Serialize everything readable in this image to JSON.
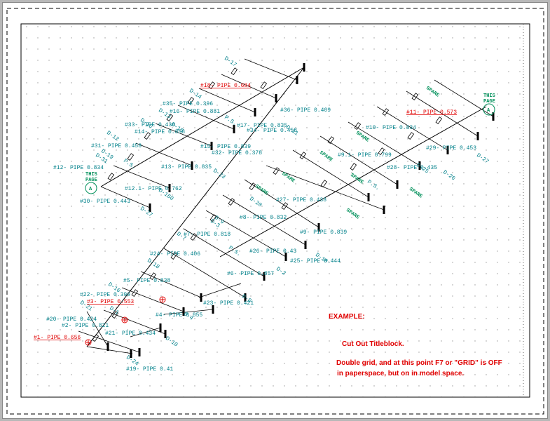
{
  "colors": {
    "pipe_line": "#000000",
    "label_teal": "#00808a",
    "label_red": "#e00000",
    "spare_green": "#00905a",
    "note_red": "#e00000",
    "grid_dot": "#9a9a9a"
  },
  "notes": {
    "heading": "EXAMPLE:",
    "line1": "Cut Out Titleblock.",
    "line2a": "Double grid, and at this point F7 or \"GRID\" is OFF",
    "line2b": "in paperspace, but on in model space."
  },
  "labels": [
    {
      "text": "#18- PIPE 0.684",
      "red": true
    },
    {
      "text": "#35- PIPE 0.396",
      "red": false
    },
    {
      "text": "#16- PIPE 0.881",
      "red": false
    },
    {
      "text": "#36- PIPE 0.409",
      "red": false
    },
    {
      "text": "#33- PIPE 0.438",
      "red": false
    },
    {
      "text": "#14- PIPE 0.858",
      "red": false
    },
    {
      "text": "#17- PIPE 0.835",
      "red": false
    },
    {
      "text": "#34- PIPE 0.458",
      "red": false
    },
    {
      "text": "#31- PIPE 0.458",
      "red": false
    },
    {
      "text": "#15- PIPE 0.839",
      "red": false
    },
    {
      "text": "#32- PIPE 0.378",
      "red": false
    },
    {
      "text": "#12- PIPE 0.834",
      "red": false
    },
    {
      "text": "#13- PIPE 0.835",
      "red": false
    },
    {
      "text": "#12.1- PIPE 0.762",
      "red": false
    },
    {
      "text": "#30- PIPE 0.443",
      "red": false
    },
    {
      "text": "#11- PIPE 0.573",
      "red": true
    },
    {
      "text": "#10- PIPE 0.834",
      "red": false
    },
    {
      "text": "#29- PIPE 0.453",
      "red": false
    },
    {
      "text": "#9.1- PIPE 0.799",
      "red": false
    },
    {
      "text": "#28- PIPE 0.435",
      "red": false
    },
    {
      "text": "#27- PIPE 0.438",
      "red": false
    },
    {
      "text": "#8- PIPE 0.832",
      "red": false
    },
    {
      "text": "#9- PIPE 0.839",
      "red": false
    },
    {
      "text": "#7- PIPE 0.818",
      "red": false
    },
    {
      "text": "#26- PIPE 0.43",
      "red": false
    },
    {
      "text": "#25- PIPE 0.444",
      "red": false
    },
    {
      "text": "#24- PIPE 0.406",
      "red": false
    },
    {
      "text": "#6- PIPE 0.857",
      "red": false
    },
    {
      "text": "#5- PIPE 0.838",
      "red": false
    },
    {
      "text": "#22- PIPE 0.399",
      "red": false
    },
    {
      "text": "#3- PIPE 0.553",
      "red": true
    },
    {
      "text": "#23- PIPE 0.421",
      "red": false
    },
    {
      "text": "#4- PIPE 0.855",
      "red": false
    },
    {
      "text": "#20- PIPE 0.424",
      "red": false
    },
    {
      "text": "#2- PIPE 0.821",
      "red": false
    },
    {
      "text": "#21- PIPE 0.434",
      "red": false
    },
    {
      "text": "#1- PIPE 0.656",
      "red": true
    },
    {
      "text": "#19- PIPE 0.41",
      "red": false
    }
  ],
  "drops": [
    "D-17",
    "D-14",
    "D-13",
    "D-16",
    "D-15",
    "D-12",
    "D-19",
    "D-11",
    "D-23",
    "D-31",
    "D-160",
    "D-27",
    "D-25",
    "D-26",
    "D-27",
    "D-20",
    "D-10",
    "D-9",
    "D-3",
    "D-7",
    "D-18",
    "D-2",
    "D-8",
    "D-16",
    "D-4",
    "D-1",
    "D-10",
    "D-24",
    "D-21"
  ],
  "spares": [
    "SPARE",
    "SPARE",
    "SPARE",
    "SPARE",
    "SPARE",
    "SPARE",
    "SPARE",
    "SPARE"
  ],
  "connectors": [
    {
      "id": "A",
      "caption": "THIS PAGE"
    },
    {
      "id": "A",
      "caption": "THIS PAGE"
    }
  ],
  "small_marks": [
    "P.S.",
    "P.S.",
    "P.S.",
    "P.S."
  ]
}
